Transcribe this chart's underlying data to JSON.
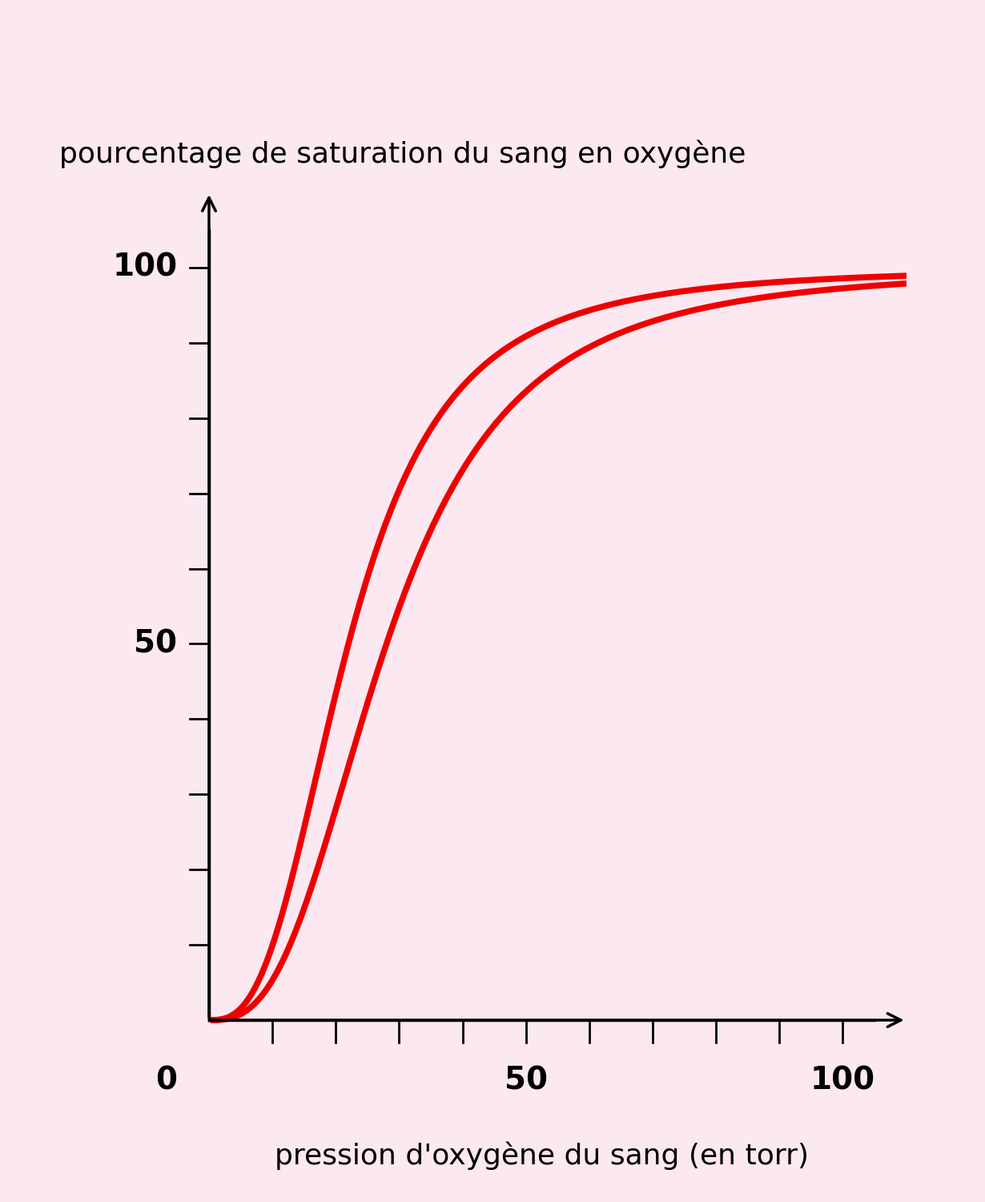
{
  "title_y": "pourcentage de saturation du sang en oxygène",
  "title_x": "pression d'oxygène du sang (en torr)",
  "bg_color": "#fce8f0",
  "curve_color": "#ee0000",
  "curve_linewidth": 5.5,
  "curve1_n": 2.8,
  "curve1_P50": 22,
  "curve2_n": 2.8,
  "curve2_P50": 28,
  "tick_label_fontsize": 28,
  "axis_label_fontsize": 26,
  "title_fontsize": 26
}
